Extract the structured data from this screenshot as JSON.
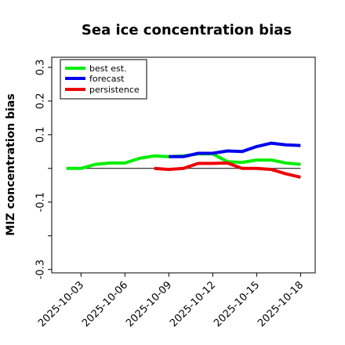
{
  "chart_data": {
    "type": "line",
    "title": "Sea ice concentration bias",
    "xlabel": "",
    "ylabel": "MIZ concentration bias",
    "ylim": [
      -0.31,
      0.33
    ],
    "yticks": [
      -0.3,
      -0.2,
      -0.1,
      0.0,
      0.1,
      0.2,
      0.3
    ],
    "ytick_labels": [
      "-0.3",
      "",
      "-0.1",
      "",
      "0.1",
      "0.2",
      "0.3"
    ],
    "xlim": [
      "2025-10-01",
      "2025-10-19"
    ],
    "xticks": [
      "2025-10-03",
      "2025-10-06",
      "2025-10-09",
      "2025-10-12",
      "2025-10-15",
      "2025-10-18"
    ],
    "highlight_tick": "2025-10-09",
    "highlight_color": "#228B22",
    "reference_line": 0.0,
    "grid": false,
    "legend_position": "upper-left",
    "series": [
      {
        "name": "best est.",
        "color": "#00ee00",
        "x": [
          "2025-10-02",
          "2025-10-03",
          "2025-10-04",
          "2025-10-05",
          "2025-10-06",
          "2025-10-07",
          "2025-10-08",
          "2025-10-09",
          "2025-10-10",
          "2025-10-11",
          "2025-10-12",
          "2025-10-13",
          "2025-10-14",
          "2025-10-15",
          "2025-10-16",
          "2025-10-17",
          "2025-10-18"
        ],
        "y": [
          0.0,
          0.0,
          0.012,
          0.016,
          0.016,
          0.03,
          0.037,
          0.035,
          0.037,
          0.043,
          0.043,
          0.02,
          0.018,
          0.025,
          0.025,
          0.016,
          0.012
        ]
      },
      {
        "name": "forecast",
        "color": "#0000ee",
        "x": [
          "2025-10-09",
          "2025-10-10",
          "2025-10-11",
          "2025-10-12",
          "2025-10-13",
          "2025-10-14",
          "2025-10-15",
          "2025-10-16",
          "2025-10-17",
          "2025-10-18"
        ],
        "y": [
          0.035,
          0.035,
          0.045,
          0.045,
          0.052,
          0.05,
          0.065,
          0.075,
          0.07,
          0.068
        ]
      },
      {
        "name": "persistence",
        "color": "#ee0000",
        "x": [
          "2025-10-08",
          "2025-10-09",
          "2025-10-10",
          "2025-10-11",
          "2025-10-12",
          "2025-10-13",
          "2025-10-14",
          "2025-10-15",
          "2025-10-16",
          "2025-10-17",
          "2025-10-18"
        ],
        "y": [
          0.0,
          -0.003,
          0.0,
          0.015,
          0.015,
          0.016,
          0.0,
          0.0,
          -0.003,
          -0.016,
          -0.026
        ]
      }
    ]
  }
}
